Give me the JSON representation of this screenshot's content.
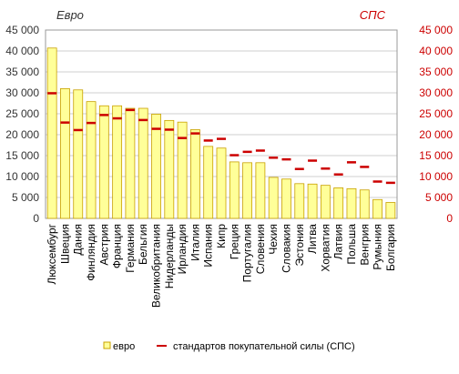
{
  "chart_data": {
    "type": "bar",
    "left_axis_label": "Евро",
    "right_axis_label": "СПС",
    "ylim": [
      0,
      45000
    ],
    "yticks": [
      {
        "value": 0,
        "label": "0"
      },
      {
        "value": 5000,
        "label": "5 000"
      },
      {
        "value": 10000,
        "label": "10 000"
      },
      {
        "value": 15000,
        "label": "15 000"
      },
      {
        "value": 20000,
        "label": "20 000"
      },
      {
        "value": 25000,
        "label": "25 000"
      },
      {
        "value": 30000,
        "label": "30 000"
      },
      {
        "value": 35000,
        "label": "35 000"
      },
      {
        "value": 40000,
        "label": "40 000"
      },
      {
        "value": 45000,
        "label": "45 000"
      }
    ],
    "grid": true,
    "legend_position": "bottom",
    "categories": [
      "Люксембург",
      "Швеция",
      "Дания",
      "Финляндия",
      "Австрия",
      "Франция",
      "Германия",
      "Бельгия",
      "Великобритания",
      "Нидерланды",
      "Ирландия",
      "Италия",
      "Испания",
      "Кипр",
      "Греция",
      "Португалия",
      "Словения",
      "Чехия",
      "Словакия",
      "Эстония",
      "Литва",
      "Хорватия",
      "Латвия",
      "Польша",
      "Венгрия",
      "Румыния",
      "Болгария"
    ],
    "series": [
      {
        "name": "евро",
        "kind": "bar",
        "color": "#ffff99",
        "border": "#c8a000",
        "values": [
          40700,
          31000,
          30700,
          27900,
          26900,
          26900,
          26300,
          26300,
          24900,
          23400,
          23000,
          21200,
          17200,
          16800,
          13500,
          13300,
          13300,
          9800,
          9400,
          8300,
          8200,
          7900,
          7300,
          7100,
          6800,
          4500,
          3800
        ]
      },
      {
        "name": "стандартов покупательной силы (СПС)",
        "kind": "marker",
        "color": "#cc0000",
        "values": [
          29900,
          22900,
          21100,
          22800,
          24700,
          23900,
          25900,
          23500,
          21400,
          21200,
          19200,
          20300,
          18600,
          19000,
          15100,
          15900,
          16200,
          14500,
          14100,
          11800,
          13800,
          11900,
          10500,
          13400,
          12300,
          8800,
          8500
        ]
      }
    ]
  }
}
